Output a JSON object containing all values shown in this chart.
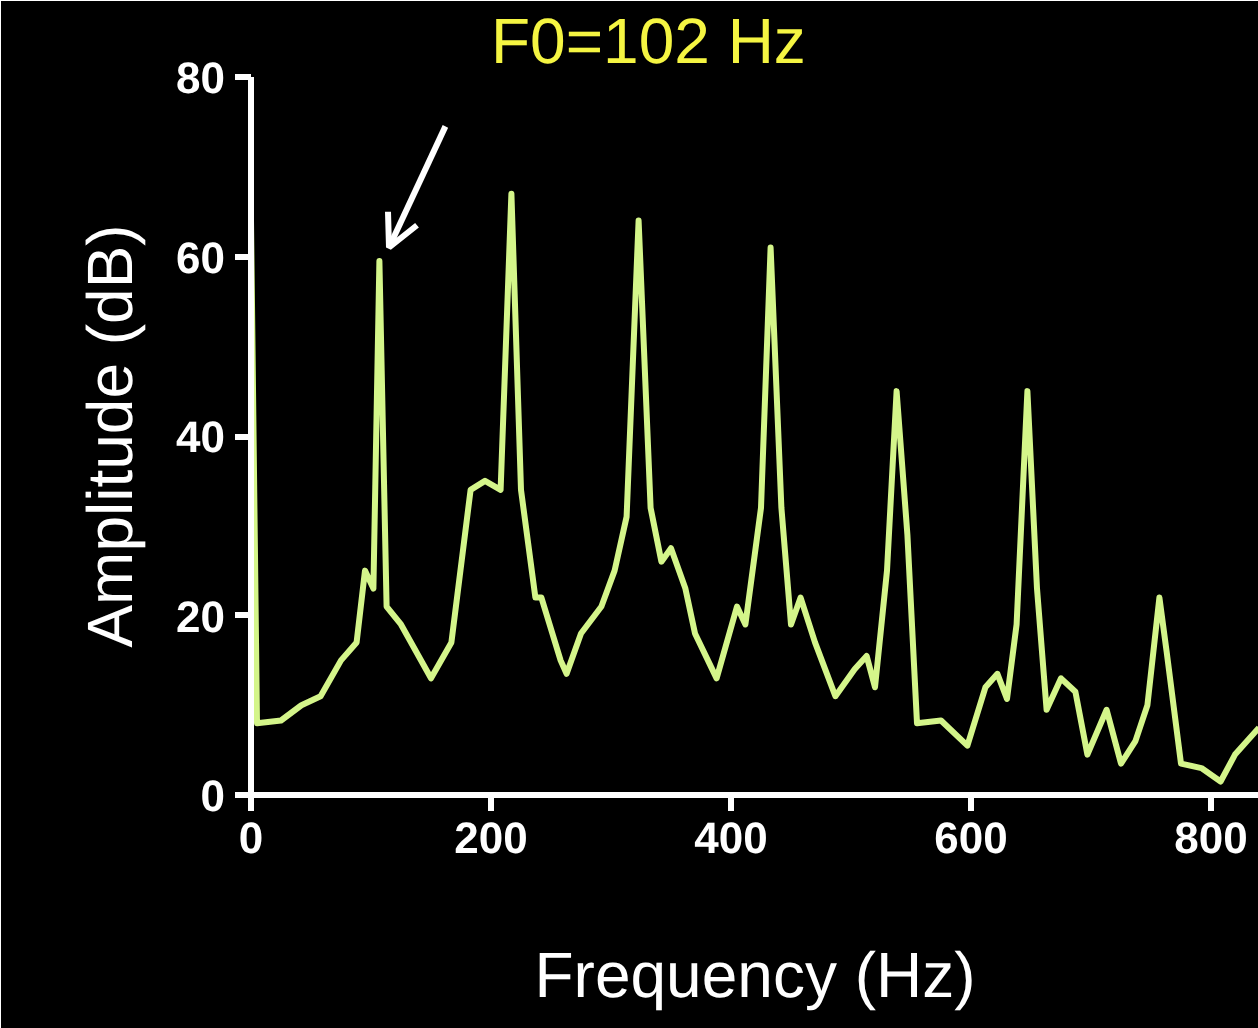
{
  "chart_data": {
    "type": "line",
    "xlabel": "Frequency (Hz)",
    "ylabel": "Amplitude (dB)",
    "x": [
      0,
      5,
      25,
      42,
      58,
      75,
      88,
      95,
      102,
      107,
      113,
      125,
      150,
      167,
      183,
      195,
      208,
      217,
      225,
      237,
      242,
      258,
      263,
      275,
      292,
      303,
      313,
      323,
      333,
      342,
      350,
      362,
      370,
      388,
      405,
      412,
      425,
      433,
      442,
      450,
      458,
      470,
      487,
      503,
      513,
      520,
      530,
      538,
      547,
      555,
      575,
      597,
      612,
      622,
      630,
      638,
      647,
      655,
      663,
      675,
      687,
      697,
      713,
      725,
      737,
      747,
      757,
      763,
      775,
      792,
      808,
      820,
      840
    ],
    "series": [
      {
        "color": "#d4f58a",
        "values": [
          64,
          8,
          8.3,
          10,
          11,
          15,
          17,
          25,
          23,
          59.5,
          21,
          19,
          13,
          17,
          34,
          35,
          34,
          67,
          34,
          22,
          22,
          15,
          13.5,
          18,
          21,
          25,
          31,
          64,
          32,
          26,
          27.5,
          23,
          18,
          13,
          21,
          19,
          32,
          61,
          32,
          19,
          22,
          17,
          11,
          14,
          15.5,
          12,
          25,
          45,
          29,
          8,
          8.3,
          5.5,
          12,
          13.5,
          10.7,
          19,
          45,
          23,
          9.5,
          13,
          11.5,
          4.5,
          9.5,
          3.5,
          6,
          10,
          22,
          16,
          3.5,
          3,
          1.5,
          4.5,
          7.5
        ]
      }
    ],
    "xlim": [
      0,
      840
    ],
    "ylim": [
      0,
      80
    ],
    "xticks": [
      0,
      200,
      400,
      600,
      800
    ],
    "yticks": [
      0,
      20,
      40,
      60,
      80
    ],
    "grid": false,
    "marker": "none",
    "line_style": "solid",
    "annotations": [
      {
        "text": "F0=102 Hz",
        "x": 107,
        "y": 59.5
      }
    ]
  }
}
